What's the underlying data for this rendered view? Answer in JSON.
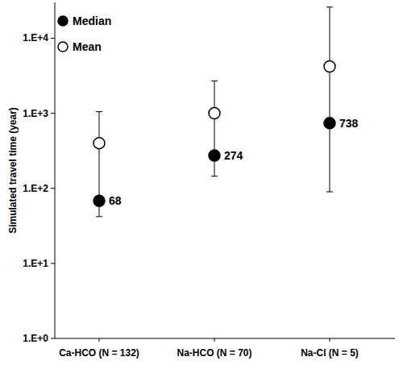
{
  "chart_data": {
    "type": "scatter",
    "y_label": "Simulated travel time (year)",
    "categories": [
      "Ca-HCO (N = 132)",
      "Na-HCO (N = 70)",
      "Na-Cl (N = 5)"
    ],
    "series": [
      {
        "name": "Median",
        "color": "#000000",
        "marker": "filled-circle",
        "data_labels": true,
        "values": [
          68,
          274,
          738
        ]
      },
      {
        "name": "Mean",
        "color": "#000000",
        "marker": "open-circle",
        "values": [
          400,
          1000,
          4200
        ]
      }
    ],
    "error_low": [
      42,
      145,
      90
    ],
    "error_high": [
      1050,
      2700,
      26000
    ],
    "log": "y",
    "grid": false,
    "legend": "top-left",
    "ylim": [
      1,
      30000
    ],
    "yticks": [
      {
        "value": 1,
        "label": "1.E+0"
      },
      {
        "value": 10,
        "label": "1.E+1"
      },
      {
        "value": 100,
        "label": "1.E+2"
      },
      {
        "value": 1000,
        "label": "1.E+3"
      },
      {
        "value": 10000,
        "label": "1.E+4"
      }
    ]
  }
}
